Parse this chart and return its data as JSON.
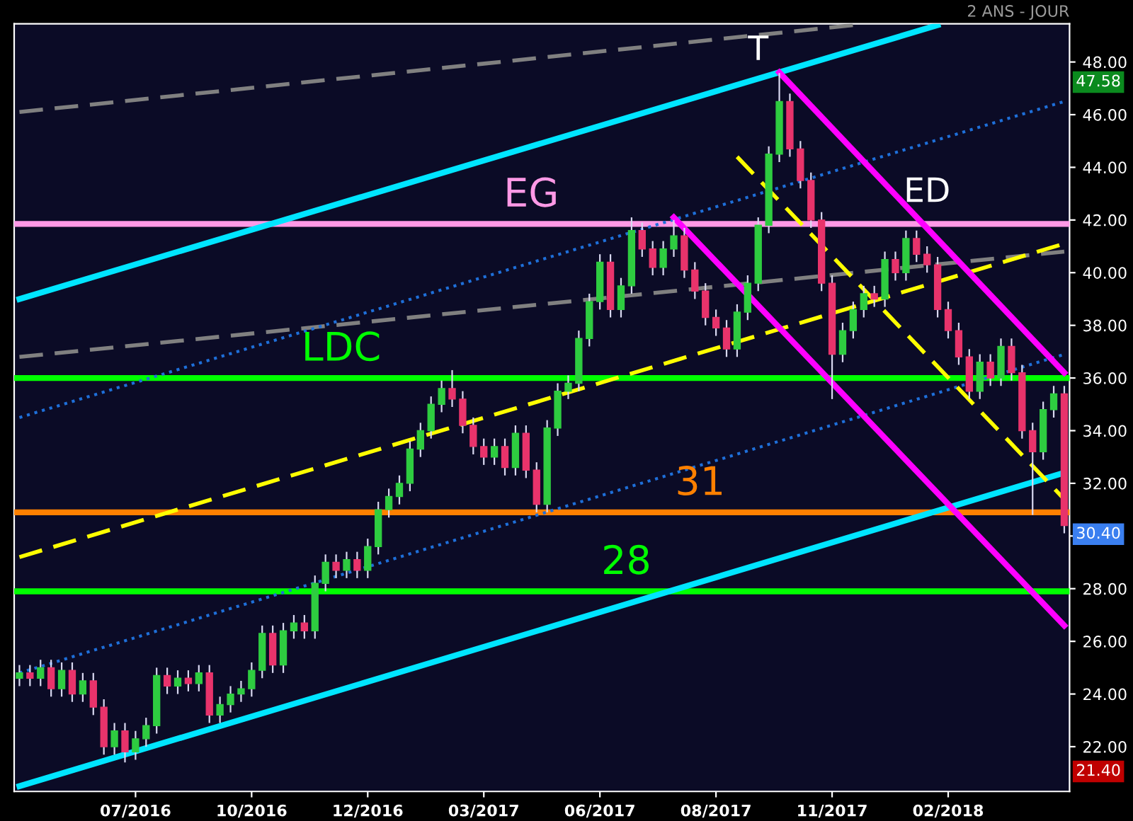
{
  "chart_data": {
    "type": "candlestick",
    "subtitle": "2 ANS - JOUR",
    "categories": [
      null,
      null,
      null,
      null,
      null,
      null,
      null,
      null,
      null,
      null,
      null,
      "07/2016",
      null,
      null,
      null,
      null,
      null,
      null,
      null,
      null,
      null,
      null,
      "10/2016",
      null,
      null,
      null,
      null,
      null,
      null,
      null,
      null,
      null,
      null,
      "12/2016",
      null,
      null,
      null,
      null,
      null,
      null,
      null,
      null,
      null,
      null,
      "03/2017",
      null,
      null,
      null,
      null,
      null,
      null,
      null,
      null,
      null,
      null,
      "06/2017",
      null,
      null,
      null,
      null,
      null,
      null,
      null,
      null,
      null,
      null,
      "08/2017",
      null,
      null,
      null,
      null,
      null,
      null,
      null,
      null,
      null,
      null,
      "11/2017",
      null,
      null,
      null,
      null,
      null,
      null,
      null,
      null,
      null,
      null,
      "02/2018",
      null,
      null,
      null,
      null,
      null,
      null,
      null,
      null,
      null,
      null,
      null
    ],
    "ohlc": [
      [
        24.6,
        25.1,
        24.3,
        24.8
      ],
      [
        24.8,
        25.1,
        24.3,
        24.6
      ],
      [
        24.6,
        25.3,
        24.3,
        25.0
      ],
      [
        25.0,
        25.3,
        23.9,
        24.2
      ],
      [
        24.2,
        25.2,
        23.9,
        24.9
      ],
      [
        24.9,
        25.2,
        23.7,
        24.0
      ],
      [
        24.0,
        24.8,
        23.7,
        24.5
      ],
      [
        24.5,
        24.8,
        23.2,
        23.5
      ],
      [
        23.5,
        23.8,
        21.7,
        22.0
      ],
      [
        22.0,
        22.9,
        21.7,
        22.6
      ],
      [
        22.6,
        22.9,
        21.4,
        21.8
      ],
      [
        21.8,
        22.6,
        21.5,
        22.3
      ],
      [
        22.3,
        23.1,
        22.0,
        22.8
      ],
      [
        22.8,
        25.0,
        22.5,
        24.7
      ],
      [
        24.7,
        25.0,
        24.0,
        24.3
      ],
      [
        24.3,
        24.9,
        24.0,
        24.6
      ],
      [
        24.6,
        24.9,
        24.1,
        24.4
      ],
      [
        24.4,
        25.1,
        24.1,
        24.8
      ],
      [
        24.8,
        25.1,
        22.9,
        23.2
      ],
      [
        23.2,
        23.9,
        22.9,
        23.6
      ],
      [
        23.6,
        24.3,
        23.3,
        24.0
      ],
      [
        24.0,
        24.5,
        23.7,
        24.2
      ],
      [
        24.2,
        25.2,
        23.9,
        24.9
      ],
      [
        24.9,
        26.6,
        24.6,
        26.3
      ],
      [
        26.3,
        26.6,
        24.8,
        25.1
      ],
      [
        25.1,
        26.7,
        24.8,
        26.4
      ],
      [
        26.4,
        27.0,
        26.1,
        26.7
      ],
      [
        26.7,
        27.0,
        26.1,
        26.4
      ],
      [
        26.4,
        28.5,
        26.1,
        28.2
      ],
      [
        28.2,
        29.3,
        27.9,
        29.0
      ],
      [
        29.0,
        29.3,
        28.4,
        28.7
      ],
      [
        28.7,
        29.4,
        28.4,
        29.1
      ],
      [
        29.1,
        29.4,
        28.4,
        28.7
      ],
      [
        28.7,
        29.9,
        28.4,
        29.6
      ],
      [
        29.6,
        31.3,
        29.3,
        31.0
      ],
      [
        31.0,
        31.8,
        30.7,
        31.5
      ],
      [
        31.5,
        32.3,
        31.2,
        32.0
      ],
      [
        32.0,
        33.6,
        31.7,
        33.3
      ],
      [
        33.3,
        34.3,
        33.0,
        34.0
      ],
      [
        34.0,
        35.3,
        33.7,
        35.0
      ],
      [
        35.0,
        35.9,
        34.7,
        35.6
      ],
      [
        35.6,
        36.3,
        34.9,
        35.2
      ],
      [
        35.2,
        35.5,
        33.9,
        34.2
      ],
      [
        34.2,
        34.5,
        33.1,
        33.4
      ],
      [
        33.4,
        33.7,
        32.7,
        33.0
      ],
      [
        33.0,
        33.7,
        32.7,
        33.4
      ],
      [
        33.4,
        33.7,
        32.3,
        32.6
      ],
      [
        32.6,
        34.2,
        32.3,
        33.9
      ],
      [
        33.9,
        34.2,
        32.2,
        32.5
      ],
      [
        32.5,
        32.8,
        30.9,
        31.2
      ],
      [
        31.2,
        34.4,
        30.9,
        34.1
      ],
      [
        34.1,
        35.8,
        33.8,
        35.5
      ],
      [
        35.5,
        36.1,
        35.2,
        35.8
      ],
      [
        35.8,
        37.8,
        35.5,
        37.5
      ],
      [
        37.5,
        39.2,
        37.2,
        38.9
      ],
      [
        38.9,
        40.7,
        38.6,
        40.4
      ],
      [
        40.4,
        40.7,
        38.3,
        38.6
      ],
      [
        38.6,
        39.8,
        38.3,
        39.5
      ],
      [
        39.5,
        42.1,
        39.2,
        41.6
      ],
      [
        41.6,
        41.9,
        40.6,
        40.9
      ],
      [
        40.9,
        41.2,
        39.9,
        40.2
      ],
      [
        40.2,
        41.2,
        39.9,
        40.9
      ],
      [
        40.9,
        42.0,
        40.6,
        41.4
      ],
      [
        41.4,
        41.7,
        39.8,
        40.1
      ],
      [
        40.1,
        40.4,
        39.0,
        39.3
      ],
      [
        39.3,
        39.6,
        38.0,
        38.3
      ],
      [
        38.3,
        38.6,
        37.6,
        37.9
      ],
      [
        37.9,
        38.2,
        36.8,
        37.1
      ],
      [
        37.1,
        38.8,
        36.8,
        38.5
      ],
      [
        38.5,
        39.9,
        38.2,
        39.6
      ],
      [
        39.6,
        42.1,
        39.3,
        41.8
      ],
      [
        41.8,
        44.8,
        41.5,
        44.5
      ],
      [
        44.5,
        47.58,
        44.2,
        46.5
      ],
      [
        46.5,
        46.8,
        44.4,
        44.7
      ],
      [
        44.7,
        45.0,
        43.2,
        43.5
      ],
      [
        43.5,
        43.8,
        41.7,
        42.0
      ],
      [
        42.0,
        42.3,
        39.3,
        39.6
      ],
      [
        39.6,
        39.9,
        35.2,
        36.9
      ],
      [
        36.9,
        38.1,
        36.6,
        37.8
      ],
      [
        37.8,
        38.9,
        37.5,
        38.6
      ],
      [
        38.6,
        39.5,
        38.3,
        39.2
      ],
      [
        39.2,
        39.5,
        38.7,
        39.0
      ],
      [
        39.0,
        40.8,
        38.7,
        40.5
      ],
      [
        40.5,
        40.8,
        39.7,
        40.0
      ],
      [
        40.0,
        41.6,
        39.7,
        41.3
      ],
      [
        41.3,
        41.6,
        40.4,
        40.7
      ],
      [
        40.7,
        41.0,
        40.0,
        40.3
      ],
      [
        40.3,
        40.6,
        38.3,
        38.6
      ],
      [
        38.6,
        38.9,
        37.5,
        37.8
      ],
      [
        37.8,
        38.1,
        36.5,
        36.8
      ],
      [
        36.8,
        37.1,
        35.2,
        35.5
      ],
      [
        35.5,
        36.9,
        35.2,
        36.6
      ],
      [
        36.6,
        36.9,
        35.7,
        36.0
      ],
      [
        36.0,
        37.5,
        35.7,
        37.2
      ],
      [
        37.2,
        37.5,
        35.9,
        36.2
      ],
      [
        36.2,
        36.5,
        33.7,
        34.0
      ],
      [
        34.0,
        34.3,
        30.8,
        33.2
      ],
      [
        33.2,
        35.1,
        32.9,
        34.8
      ],
      [
        34.8,
        35.7,
        34.5,
        35.4
      ],
      [
        35.4,
        35.7,
        30.1,
        30.4
      ]
    ],
    "ylim": [
      20.3,
      49.45
    ],
    "yticks": [
      {
        "value": 22,
        "label": "22.00"
      },
      {
        "value": 24,
        "label": "24.00"
      },
      {
        "value": 26,
        "label": "26.00"
      },
      {
        "value": 28,
        "label": "28.00"
      },
      {
        "value": 30,
        "label": null
      },
      {
        "value": 32,
        "label": "32.00"
      },
      {
        "value": 34,
        "label": "34.00"
      },
      {
        "value": 36,
        "label": "36.00"
      },
      {
        "value": 38,
        "label": "38.00"
      },
      {
        "value": 40,
        "label": "40.00"
      },
      {
        "value": 42,
        "label": "42.00"
      },
      {
        "value": 44,
        "label": "44.00"
      },
      {
        "value": 46,
        "label": "46.00"
      },
      {
        "value": 48,
        "label": "48.00"
      }
    ],
    "series": [
      {
        "type": "line",
        "color": "#808080",
        "line_style": "dashed",
        "values": [
          46.1,
          null,
          null,
          null,
          null,
          null,
          null,
          null,
          null,
          null,
          null,
          null,
          null,
          null,
          null,
          null,
          null,
          null,
          null,
          null,
          null,
          null,
          null,
          null,
          null,
          null,
          null,
          null,
          null,
          null,
          null,
          null,
          null,
          null,
          null,
          null,
          null,
          null,
          null,
          null,
          null,
          null,
          null,
          null,
          null,
          null,
          null,
          null,
          null,
          null,
          null,
          null,
          null,
          null,
          null,
          null,
          null,
          null,
          null,
          null,
          null,
          null,
          null,
          null,
          null,
          null,
          null,
          null,
          null,
          null,
          null,
          null,
          null,
          null,
          null,
          null,
          null,
          null,
          null,
          49.4,
          null,
          null,
          null,
          null,
          null,
          null,
          null,
          null,
          null,
          null,
          null,
          null,
          null,
          null,
          null,
          null,
          null,
          null,
          null,
          null
        ]
      },
      {
        "type": "line",
        "color": "#808080",
        "line_style": "dashed",
        "values": [
          36.8,
          null,
          null,
          null,
          null,
          null,
          null,
          null,
          null,
          null,
          null,
          null,
          null,
          null,
          null,
          null,
          null,
          null,
          null,
          null,
          null,
          null,
          null,
          null,
          null,
          null,
          null,
          null,
          null,
          null,
          null,
          null,
          null,
          null,
          null,
          null,
          null,
          null,
          null,
          null,
          null,
          null,
          null,
          null,
          null,
          null,
          null,
          null,
          null,
          null,
          null,
          null,
          null,
          null,
          null,
          null,
          null,
          null,
          null,
          null,
          null,
          null,
          null,
          null,
          null,
          null,
          null,
          null,
          null,
          null,
          null,
          null,
          null,
          null,
          null,
          null,
          null,
          null,
          null,
          null,
          null,
          null,
          null,
          null,
          null,
          null,
          null,
          null,
          null,
          null,
          null,
          null,
          null,
          null,
          null,
          null,
          null,
          null,
          null,
          40.8
        ]
      },
      {
        "type": "line",
        "color": "#1e6fd9",
        "line_style": "dotted",
        "values": [
          34.5,
          null,
          null,
          null,
          null,
          null,
          null,
          null,
          null,
          null,
          null,
          null,
          null,
          null,
          null,
          null,
          null,
          null,
          null,
          null,
          null,
          null,
          null,
          null,
          null,
          null,
          null,
          null,
          null,
          null,
          null,
          null,
          null,
          null,
          null,
          null,
          null,
          null,
          null,
          null,
          null,
          null,
          null,
          null,
          null,
          null,
          null,
          null,
          null,
          null,
          null,
          null,
          null,
          null,
          null,
          null,
          null,
          null,
          null,
          null,
          null,
          null,
          null,
          null,
          null,
          null,
          null,
          null,
          null,
          null,
          null,
          null,
          null,
          null,
          null,
          null,
          null,
          null,
          null,
          null,
          null,
          null,
          null,
          null,
          null,
          null,
          null,
          null,
          null,
          null,
          null,
          null,
          null,
          null,
          null,
          null,
          null,
          null,
          null,
          46.5
        ]
      },
      {
        "type": "line",
        "color": "#1e6fd9",
        "line_style": "dotted",
        "values": [
          24.8,
          null,
          null,
          null,
          null,
          null,
          null,
          null,
          null,
          null,
          null,
          null,
          null,
          null,
          null,
          null,
          null,
          null,
          null,
          null,
          null,
          null,
          null,
          null,
          null,
          null,
          null,
          null,
          null,
          null,
          null,
          null,
          null,
          null,
          null,
          null,
          null,
          null,
          null,
          null,
          null,
          null,
          null,
          null,
          null,
          null,
          null,
          null,
          null,
          null,
          null,
          null,
          null,
          null,
          null,
          null,
          null,
          null,
          null,
          null,
          null,
          null,
          null,
          null,
          null,
          null,
          null,
          null,
          null,
          null,
          null,
          null,
          null,
          null,
          null,
          null,
          null,
          null,
          null,
          null,
          null,
          null,
          null,
          null,
          null,
          null,
          null,
          null,
          null,
          null,
          null,
          null,
          null,
          null,
          null,
          null,
          null,
          null,
          null,
          36.9
        ]
      },
      {
        "type": "line",
        "color": "#00e5ff",
        "line_style": "solid",
        "values": [
          39.0,
          null,
          null,
          null,
          null,
          null,
          null,
          null,
          null,
          null,
          null,
          null,
          null,
          null,
          null,
          null,
          null,
          null,
          null,
          null,
          null,
          null,
          null,
          null,
          null,
          null,
          null,
          null,
          null,
          null,
          null,
          null,
          null,
          null,
          null,
          null,
          null,
          null,
          null,
          null,
          null,
          null,
          null,
          null,
          null,
          null,
          null,
          null,
          null,
          null,
          null,
          null,
          null,
          null,
          null,
          null,
          null,
          null,
          null,
          null,
          null,
          null,
          null,
          null,
          null,
          null,
          null,
          null,
          null,
          null,
          null,
          null,
          null,
          null,
          null,
          null,
          null,
          null,
          null,
          null,
          null,
          null,
          null,
          null,
          null,
          null,
          null,
          49.4,
          null,
          null,
          null,
          null,
          null,
          null,
          null,
          null,
          null,
          null,
          null,
          null
        ]
      },
      {
        "type": "line",
        "color": "#00e5ff",
        "line_style": "solid",
        "values": [
          20.5,
          null,
          null,
          null,
          null,
          null,
          null,
          null,
          null,
          null,
          null,
          null,
          null,
          null,
          null,
          null,
          null,
          null,
          null,
          null,
          null,
          null,
          null,
          null,
          null,
          null,
          null,
          null,
          null,
          null,
          null,
          null,
          null,
          null,
          null,
          null,
          null,
          null,
          null,
          null,
          null,
          null,
          null,
          null,
          null,
          null,
          null,
          null,
          null,
          null,
          null,
          null,
          null,
          null,
          null,
          null,
          null,
          null,
          null,
          null,
          null,
          null,
          null,
          null,
          null,
          null,
          null,
          null,
          null,
          null,
          null,
          null,
          null,
          null,
          null,
          null,
          null,
          null,
          null,
          null,
          null,
          null,
          null,
          null,
          null,
          null,
          null,
          null,
          null,
          null,
          null,
          null,
          null,
          null,
          null,
          null,
          null,
          null,
          null,
          32.4
        ]
      },
      {
        "type": "line",
        "color": "#ffff00",
        "line_style": "dashed",
        "values": [
          29.2,
          null,
          null,
          null,
          null,
          null,
          null,
          null,
          null,
          null,
          null,
          null,
          null,
          null,
          null,
          null,
          null,
          null,
          null,
          null,
          null,
          null,
          null,
          null,
          null,
          null,
          null,
          null,
          null,
          null,
          null,
          null,
          null,
          null,
          null,
          null,
          null,
          null,
          null,
          null,
          null,
          null,
          null,
          null,
          null,
          null,
          null,
          null,
          null,
          null,
          null,
          null,
          null,
          null,
          null,
          null,
          null,
          null,
          null,
          null,
          null,
          null,
          null,
          null,
          null,
          null,
          null,
          null,
          null,
          null,
          null,
          null,
          null,
          null,
          null,
          null,
          null,
          null,
          null,
          null,
          null,
          null,
          null,
          null,
          null,
          null,
          null,
          null,
          null,
          null,
          null,
          null,
          null,
          null,
          null,
          null,
          null,
          null,
          null,
          41.1
        ]
      },
      {
        "type": "line",
        "color": "#ffff00",
        "line_style": "dashed",
        "values": [
          null,
          null,
          null,
          null,
          null,
          null,
          null,
          null,
          null,
          null,
          null,
          null,
          null,
          null,
          null,
          null,
          null,
          null,
          null,
          null,
          null,
          null,
          null,
          null,
          null,
          null,
          null,
          null,
          null,
          null,
          null,
          null,
          null,
          null,
          null,
          null,
          null,
          null,
          null,
          null,
          null,
          null,
          null,
          null,
          null,
          null,
          null,
          null,
          null,
          null,
          null,
          null,
          null,
          null,
          null,
          null,
          null,
          null,
          null,
          null,
          null,
          null,
          null,
          null,
          null,
          null,
          null,
          null,
          44.4,
          null,
          null,
          null,
          null,
          null,
          null,
          null,
          null,
          null,
          null,
          null,
          null,
          null,
          null,
          null,
          null,
          null,
          null,
          null,
          null,
          null,
          null,
          null,
          null,
          null,
          null,
          null,
          null,
          null,
          null,
          31.4
        ]
      },
      {
        "type": "line",
        "color": "#ff00ff",
        "line_style": "solid",
        "values": [
          null,
          null,
          null,
          null,
          null,
          null,
          null,
          null,
          null,
          null,
          null,
          null,
          null,
          null,
          null,
          null,
          null,
          null,
          null,
          null,
          null,
          null,
          null,
          null,
          null,
          null,
          null,
          null,
          null,
          null,
          null,
          null,
          null,
          null,
          null,
          null,
          null,
          null,
          null,
          null,
          null,
          null,
          null,
          null,
          null,
          null,
          null,
          null,
          null,
          null,
          null,
          null,
          null,
          null,
          null,
          null,
          null,
          null,
          null,
          null,
          null,
          null,
          null,
          null,
          null,
          null,
          null,
          null,
          null,
          null,
          null,
          null,
          47.6,
          null,
          null,
          null,
          null,
          null,
          null,
          null,
          null,
          null,
          null,
          null,
          null,
          null,
          null,
          null,
          null,
          null,
          null,
          null,
          null,
          null,
          null,
          null,
          null,
          null,
          null,
          36.2
        ]
      },
      {
        "type": "line",
        "color": "#ff00ff",
        "line_style": "solid",
        "values": [
          null,
          null,
          null,
          null,
          null,
          null,
          null,
          null,
          null,
          null,
          null,
          null,
          null,
          null,
          null,
          null,
          null,
          null,
          null,
          null,
          null,
          null,
          null,
          null,
          null,
          null,
          null,
          null,
          null,
          null,
          null,
          null,
          null,
          null,
          null,
          null,
          null,
          null,
          null,
          null,
          null,
          null,
          null,
          null,
          null,
          null,
          null,
          null,
          null,
          null,
          null,
          null,
          null,
          null,
          null,
          null,
          null,
          null,
          null,
          null,
          null,
          null,
          42.1,
          null,
          null,
          null,
          null,
          null,
          null,
          null,
          null,
          null,
          null,
          null,
          null,
          null,
          null,
          null,
          null,
          null,
          null,
          null,
          null,
          null,
          null,
          null,
          null,
          null,
          null,
          null,
          null,
          null,
          null,
          null,
          null,
          null,
          null,
          null,
          null,
          26.6
        ]
      }
    ],
    "ref_lines": [
      {
        "axis": "y",
        "value": 41.85,
        "label": "EG",
        "color": "#ff99e6"
      },
      {
        "axis": "y",
        "value": 36.0,
        "label": "LDC",
        "color": "#00ff00"
      },
      {
        "axis": "y",
        "value": 30.9,
        "label": "31",
        "color": "#ff8000"
      },
      {
        "axis": "y",
        "value": 27.9,
        "label": "28",
        "color": "#00ff00"
      }
    ],
    "annotations": [
      "T",
      "ED",
      "47.58",
      "30.40",
      "21.40"
    ]
  }
}
